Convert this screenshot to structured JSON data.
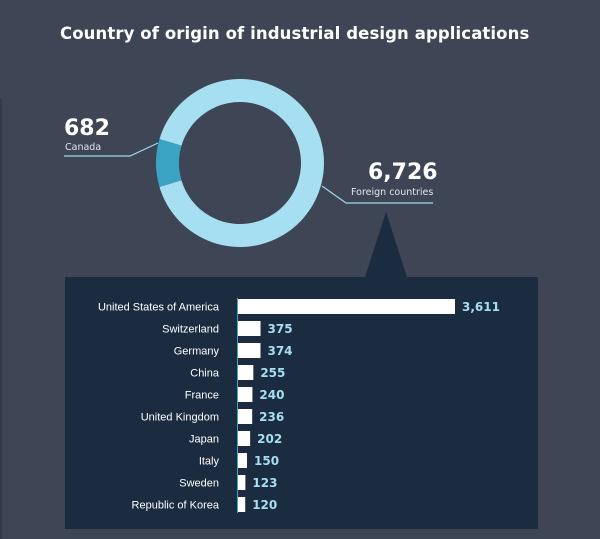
{
  "title": "Country of origin of industrial design applications",
  "colors": {
    "background": "#3e4554",
    "panel": "#1b2c40",
    "donut_foreign": "#a6def2",
    "donut_canada": "#3aa2c2",
    "bar_fill": "#ffffff",
    "value_text": "#a6def2"
  },
  "chart_data": [
    {
      "type": "pie",
      "variant": "donut",
      "labels": [
        "Canada",
        "Foreign countries"
      ],
      "values": [
        682,
        6726
      ],
      "value_labels": [
        "682",
        "6,726"
      ]
    },
    {
      "type": "bar",
      "orientation": "horizontal",
      "categories": [
        "United States of America",
        "Switzerland",
        "Germany",
        "China",
        "France",
        "United Kingdom",
        "Japan",
        "Italy",
        "Sweden",
        "Republic of Korea"
      ],
      "values": [
        3611,
        375,
        374,
        255,
        240,
        236,
        202,
        150,
        123,
        120
      ],
      "value_labels": [
        "3,611",
        "375",
        "374",
        "255",
        "240",
        "236",
        "202",
        "150",
        "123",
        "120"
      ]
    }
  ]
}
